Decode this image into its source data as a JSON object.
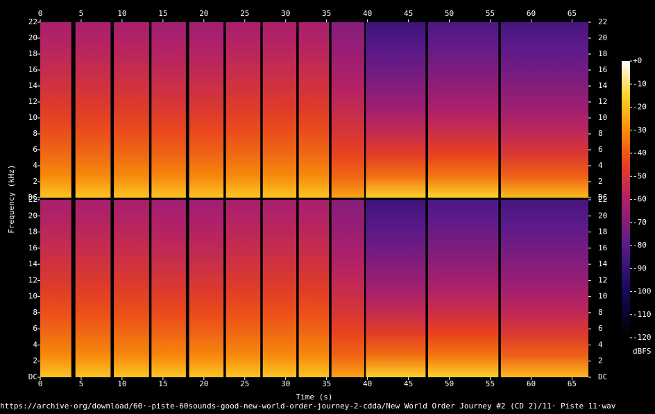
{
  "chart_data": {
    "type": "spectrogram",
    "x_label": "Time (s)",
    "y_label": "Frequency (kHz)",
    "colorbar_label": "dBFS",
    "source": "https://archive·org/download/60·-piste-60sounds-good-new-world-order-journey-2-cdda/New World Order Journey #2 (CD 2)/11· Piste 11·wav",
    "xlim": [
      0,
      67
    ],
    "xticks": [
      0,
      5,
      10,
      15,
      20,
      25,
      30,
      35,
      40,
      45,
      50,
      55,
      60,
      65
    ],
    "ylim": [
      0,
      22
    ],
    "yticks": [
      {
        "value": 0,
        "label": "DC"
      },
      2,
      4,
      6,
      8,
      10,
      12,
      14,
      16,
      18,
      20,
      22
    ],
    "clim": [
      -120,
      0
    ],
    "cticks": [
      {
        "value": 0,
        "label": "+0"
      },
      -10,
      -20,
      -30,
      -40,
      -50,
      -60,
      -70,
      -80,
      -90,
      -100,
      -110,
      -120
    ],
    "segments": [
      {
        "start": 0,
        "end": 3.8,
        "bottom_db": -18,
        "top_db": -62
      },
      {
        "start": 4.3,
        "end": 8.6,
        "bottom_db": -18,
        "top_db": -62
      },
      {
        "start": 9.0,
        "end": 13.3,
        "bottom_db": -18,
        "top_db": -62
      },
      {
        "start": 13.6,
        "end": 17.8,
        "bottom_db": -18,
        "top_db": -64
      },
      {
        "start": 18.2,
        "end": 22.4,
        "bottom_db": -18,
        "top_db": -64
      },
      {
        "start": 22.7,
        "end": 26.9,
        "bottom_db": -18,
        "top_db": -62
      },
      {
        "start": 27.2,
        "end": 31.3,
        "bottom_db": -18,
        "top_db": -62
      },
      {
        "start": 31.6,
        "end": 35.3,
        "bottom_db": -18,
        "top_db": -62
      },
      {
        "start": 35.6,
        "end": 39.6,
        "bottom_db": -25,
        "top_db": -70
      },
      {
        "start": 39.8,
        "end": 47.1,
        "bottom_db": -15,
        "top_db": -88
      },
      {
        "start": 47.4,
        "end": 56.0,
        "bottom_db": -15,
        "top_db": -84
      },
      {
        "start": 56.3,
        "end": 67.0,
        "bottom_db": -20,
        "top_db": -86
      }
    ]
  }
}
